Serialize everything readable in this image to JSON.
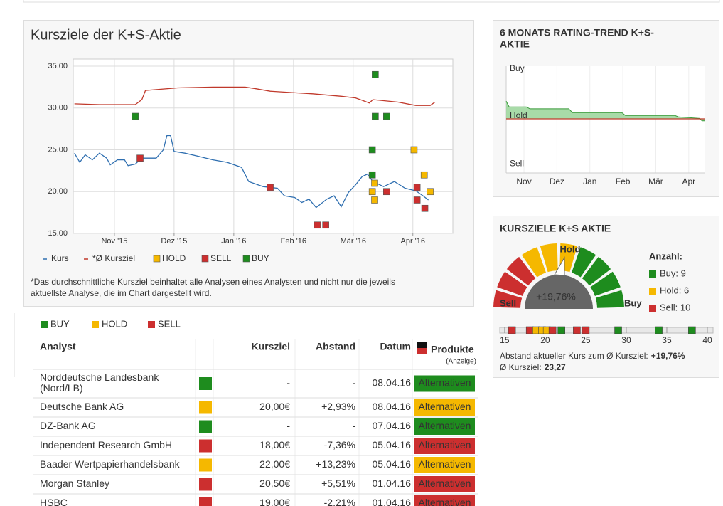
{
  "chart_data": [
    {
      "type": "line",
      "title": "Kursziele der K+S-Aktie",
      "xlim": [
        0.31,
        6.67
      ],
      "ylim": [
        15,
        35.85
      ],
      "xticks": [
        {
          "value": 1,
          "label": "Nov '15"
        },
        {
          "value": 2,
          "label": "Dez '15"
        },
        {
          "value": 3,
          "label": "Jan '16"
        },
        {
          "value": 4,
          "label": "Feb '16"
        },
        {
          "value": 5,
          "label": "Mär '16"
        },
        {
          "value": 6,
          "label": "Apr '16"
        }
      ],
      "yticks": [
        {
          "value": 15,
          "label": "15.00"
        },
        {
          "value": 20,
          "label": "20.00"
        },
        {
          "value": 25,
          "label": "25.00"
        },
        {
          "value": 30,
          "label": "30.00"
        },
        {
          "value": 35,
          "label": "35.00"
        }
      ],
      "grid": true,
      "series": [
        {
          "name": "Kurs",
          "type": "line",
          "color": "#2f6fb0",
          "x": [
            0.33,
            0.42,
            0.51,
            0.63,
            0.75,
            0.87,
            0.93,
            1.05,
            1.17,
            1.23,
            1.35,
            1.46,
            1.58,
            1.7,
            1.82,
            1.88,
            1.94,
            2.0,
            2.18,
            2.42,
            2.65,
            2.89,
            3.13,
            3.25,
            3.49,
            3.73,
            3.85,
            4.02,
            4.14,
            4.26,
            4.38,
            4.56,
            4.68,
            4.8,
            4.92,
            5.04,
            5.15,
            5.24,
            5.33,
            5.51,
            5.69,
            5.87,
            6.05,
            6.17,
            6.26
          ],
          "values": [
            24.6,
            23.5,
            24.4,
            23.8,
            24.6,
            24.0,
            23.2,
            23.8,
            23.8,
            23.1,
            23.3,
            24.0,
            24.0,
            24.0,
            25.0,
            26.7,
            26.7,
            24.8,
            24.6,
            24.2,
            23.8,
            23.5,
            22.9,
            21.2,
            20.6,
            20.4,
            19.5,
            19.3,
            18.7,
            19.1,
            18.1,
            19.1,
            19.5,
            18.2,
            19.9,
            20.8,
            21.8,
            22.1,
            21.2,
            20.6,
            21.2,
            20.4,
            20.1,
            19.5,
            19.0
          ]
        },
        {
          "name": "*Ø Kursziel",
          "type": "line",
          "color": "#c0392b",
          "x": [
            0.33,
            0.75,
            1.35,
            1.46,
            1.52,
            2.06,
            2.65,
            3.19,
            3.37,
            3.61,
            4.08,
            4.32,
            4.8,
            5.04,
            5.27,
            5.33,
            5.75,
            6.05,
            6.29,
            6.37
          ],
          "values": [
            30.5,
            30.4,
            30.4,
            31.0,
            32.1,
            32.4,
            32.5,
            32.5,
            32.3,
            32.0,
            31.8,
            31.7,
            31.4,
            31.2,
            30.6,
            31.0,
            30.7,
            30.3,
            30.3,
            30.7
          ]
        },
        {
          "name": "HOLD",
          "type": "scatter",
          "color": "#f5b800",
          "x": [
            5.32,
            5.36,
            5.36,
            6.02,
            6.19,
            6.29
          ],
          "values": [
            20.0,
            21.0,
            19.0,
            25.0,
            22.0,
            20.0
          ]
        },
        {
          "name": "SELL",
          "type": "scatter",
          "color": "#cc2f2f",
          "x": [
            1.43,
            3.61,
            4.4,
            4.54,
            5.56,
            6.07,
            6.07,
            6.2
          ],
          "values": [
            24.0,
            20.5,
            16.0,
            16.0,
            20.0,
            20.5,
            19.0,
            18.0
          ]
        },
        {
          "name": "BUY",
          "type": "scatter",
          "color": "#1e8c1e",
          "x": [
            1.35,
            5.37,
            5.37,
            5.56,
            5.32,
            5.32
          ],
          "values": [
            29.0,
            34.0,
            29.0,
            29.0,
            25.0,
            22.0
          ]
        }
      ],
      "footnote": [
        "*Das durchschnittliche Kursziel beinhaltet alle Analysen eines Analysten und nicht nur die jeweils",
        "aktuellste Analyse, die im Chart dargestellt wird."
      ]
    },
    {
      "type": "area",
      "title": [
        "6 MONATS RATING-TREND K+S-",
        "AKTIE"
      ],
      "x": [
        0.46,
        0.55,
        1.07,
        1.18,
        2.36,
        2.47,
        3.97,
        4.08,
        5.58,
        5.69,
        6.33,
        6.4,
        6.5
      ],
      "values": [
        0.37,
        0.25,
        0.25,
        0.21,
        0.21,
        0.13,
        0.13,
        0.07,
        0.07,
        0.04,
        0.01,
        -0.04,
        -0.04
      ],
      "color": "#3a9a3a",
      "fill": "#9fd79f",
      "baseline": 0,
      "baseline_color": "#c0392b",
      "xlim": [
        0.46,
        6.5
      ],
      "ylim": [
        -1.13,
        1.1
      ],
      "xticks": [
        {
          "value": 1,
          "label": "Nov"
        },
        {
          "value": 2,
          "label": "Dez"
        },
        {
          "value": 3,
          "label": "Jan"
        },
        {
          "value": 4,
          "label": "Feb"
        },
        {
          "value": 5,
          "label": "Mär"
        },
        {
          "value": 6,
          "label": "Apr"
        }
      ],
      "yticks": [
        {
          "value": 1,
          "label": "Buy"
        },
        {
          "value": 0,
          "label": "Hold"
        },
        {
          "value": -1,
          "label": "Sell"
        }
      ]
    },
    {
      "type": "gauge",
      "title": "KURSZIELE K+S AKTIE",
      "value_label": "+19,76%",
      "hold_label": "Hold",
      "sell_label": "Sell",
      "buy_label": "Buy",
      "segment_colors": [
        "#cc2f2f",
        "#cc2f2f",
        "#cc2f2f",
        "#f5b800",
        "#f5b800",
        "#f5b800",
        "#1e8c1e",
        "#1e8c1e",
        "#1e8c1e",
        "#1e8c1e"
      ],
      "legend_title": "Anzahl:",
      "legend": [
        {
          "label": "Buy: 9",
          "color": "#1e8c1e"
        },
        {
          "label": "Hold: 6",
          "color": "#f5b800"
        },
        {
          "label": "Sell: 10",
          "color": "#cc2f2f"
        }
      ]
    },
    {
      "type": "strip",
      "xlim": [
        14.4,
        40.7
      ],
      "xticks": [
        15,
        20,
        25,
        30,
        35,
        40
      ],
      "values": [
        15.9,
        18.1,
        18.9,
        19.6,
        20.2,
        20.9,
        22.0,
        23.9,
        25.0,
        29.0,
        34.0,
        38.1
      ],
      "colors": [
        "#cc2f2f",
        "#cc2f2f",
        "#f5b800",
        "#f5b800",
        "#f5b800",
        "#cc2f2f",
        "#1e8c1e",
        "#cc2f2f",
        "#cc2f2f",
        "#1e8c1e",
        "#1e8c1e",
        "#1e8c1e"
      ],
      "note": "Abstand aktueller Kurs zum Ø Kursziel:",
      "note_value": "+19,76%",
      "avg": "Ø Kursziel:",
      "avg_value": "23,27"
    }
  ],
  "table": {
    "legend": [
      {
        "label": "BUY",
        "color": "#1e8c1e"
      },
      {
        "label": "HOLD",
        "color": "#f5b800"
      },
      {
        "label": "SELL",
        "color": "#cc2f2f"
      }
    ],
    "columns": [
      "Analyst",
      "Kursziel",
      "Abstand",
      "Datum",
      "Produkte"
    ],
    "ad_note": "(Anzeige)",
    "rows": [
      {
        "analyst": [
          "Norddeutsche Landesbank",
          "(Nord/LB)"
        ],
        "color": "#1e8c1e",
        "kursziel": "-",
        "abstand": "-",
        "abstand_color": "#666666",
        "datum": "08.04.16",
        "produkt": "Alternativen"
      },
      {
        "analyst": [
          "Deutsche Bank AG"
        ],
        "color": "#f5b800",
        "kursziel": "20,00€",
        "abstand": "+2,93%",
        "abstand_color": "#2e8b2e",
        "datum": "08.04.16",
        "produkt": "Alternativen"
      },
      {
        "analyst": [
          "DZ-Bank AG"
        ],
        "color": "#1e8c1e",
        "kursziel": "-",
        "abstand": "-",
        "abstand_color": "#666666",
        "datum": "07.04.16",
        "produkt": "Alternativen"
      },
      {
        "analyst": [
          "Independent Research GmbH"
        ],
        "color": "#cc2f2f",
        "kursziel": "18,00€",
        "abstand": "-7,36%",
        "abstand_color": "#c0392b",
        "datum": "05.04.16",
        "produkt": "Alternativen"
      },
      {
        "analyst": [
          "Baader Wertpapierhandelsbank"
        ],
        "color": "#f5b800",
        "kursziel": "22,00€",
        "abstand": "+13,23%",
        "abstand_color": "#2e8b2e",
        "datum": "05.04.16",
        "produkt": "Alternativen"
      },
      {
        "analyst": [
          "Morgan Stanley"
        ],
        "color": "#cc2f2f",
        "kursziel": "20,50€",
        "abstand": "+5,51%",
        "abstand_color": "#2e8b2e",
        "datum": "01.04.16",
        "produkt": "Alternativen"
      },
      {
        "analyst": [
          "HSBC"
        ],
        "color": "#cc2f2f",
        "kursziel": "19,00€",
        "abstand": "-2,21%",
        "abstand_color": "#c0392b",
        "datum": "01.04.16",
        "produkt": "Alternativen"
      }
    ]
  }
}
